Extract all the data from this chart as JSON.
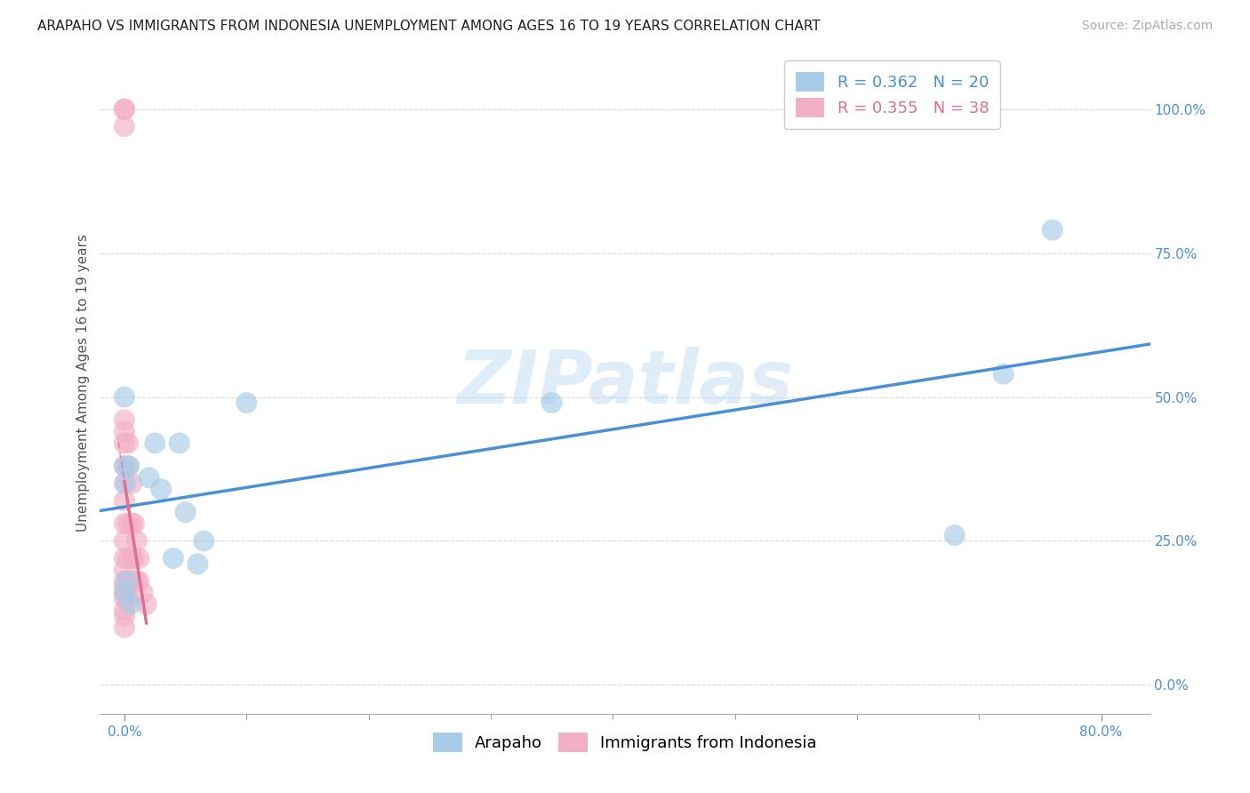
{
  "title": "ARAPAHO VS IMMIGRANTS FROM INDONESIA UNEMPLOYMENT AMONG AGES 16 TO 19 YEARS CORRELATION CHART",
  "source": "Source: ZipAtlas.com",
  "ylabel": "Unemployment Among Ages 16 to 19 years",
  "x_left_label": "0.0%",
  "x_right_label": "80.0%",
  "ylabel_ticks": [
    "0.0%",
    "25.0%",
    "50.0%",
    "75.0%",
    "100.0%"
  ],
  "xlim": [
    -0.02,
    0.84
  ],
  "ylim": [
    -0.05,
    1.1
  ],
  "arapaho_R": 0.362,
  "arapaho_N": 20,
  "indonesia_R": 0.355,
  "indonesia_N": 38,
  "arapaho_color": "#a8cce8",
  "indonesia_color": "#f2b0c4",
  "arapaho_line_color": "#4a90d9",
  "indonesia_line_color": "#e07090",
  "arapaho_x": [
    0.0,
    0.0,
    0.0,
    0.004,
    0.005,
    0.02,
    0.025,
    0.03,
    0.04,
    0.045,
    0.05,
    0.06,
    0.065,
    0.1,
    0.35,
    0.68,
    0.72,
    0.76,
    0.001,
    0.002
  ],
  "arapaho_y": [
    0.5,
    0.38,
    0.16,
    0.38,
    0.14,
    0.36,
    0.42,
    0.34,
    0.22,
    0.42,
    0.3,
    0.21,
    0.25,
    0.49,
    0.49,
    0.26,
    0.54,
    0.79,
    0.35,
    0.18
  ],
  "indonesia_x": [
    0.0,
    0.0,
    0.0,
    0.0,
    0.0,
    0.0,
    0.0,
    0.0,
    0.0,
    0.0,
    0.0,
    0.0,
    0.0,
    0.0,
    0.0,
    0.0,
    0.0,
    0.0,
    0.0,
    0.0,
    0.003,
    0.003,
    0.003,
    0.003,
    0.003,
    0.003,
    0.006,
    0.006,
    0.006,
    0.006,
    0.008,
    0.008,
    0.01,
    0.01,
    0.012,
    0.012,
    0.015,
    0.018
  ],
  "indonesia_y": [
    1.0,
    1.0,
    0.97,
    0.46,
    0.44,
    0.42,
    0.38,
    0.35,
    0.32,
    0.28,
    0.25,
    0.22,
    0.2,
    0.18,
    0.17,
    0.16,
    0.15,
    0.13,
    0.12,
    0.1,
    0.42,
    0.38,
    0.28,
    0.22,
    0.18,
    0.15,
    0.35,
    0.28,
    0.22,
    0.18,
    0.28,
    0.22,
    0.25,
    0.18,
    0.22,
    0.18,
    0.16,
    0.14
  ],
  "watermark": "ZIPatlas",
  "grid_color": "#d8d8d8",
  "background_color": "#ffffff",
  "title_fontsize": 11,
  "axis_label_fontsize": 11,
  "tick_fontsize": 11,
  "legend_fontsize": 13,
  "source_fontsize": 10
}
